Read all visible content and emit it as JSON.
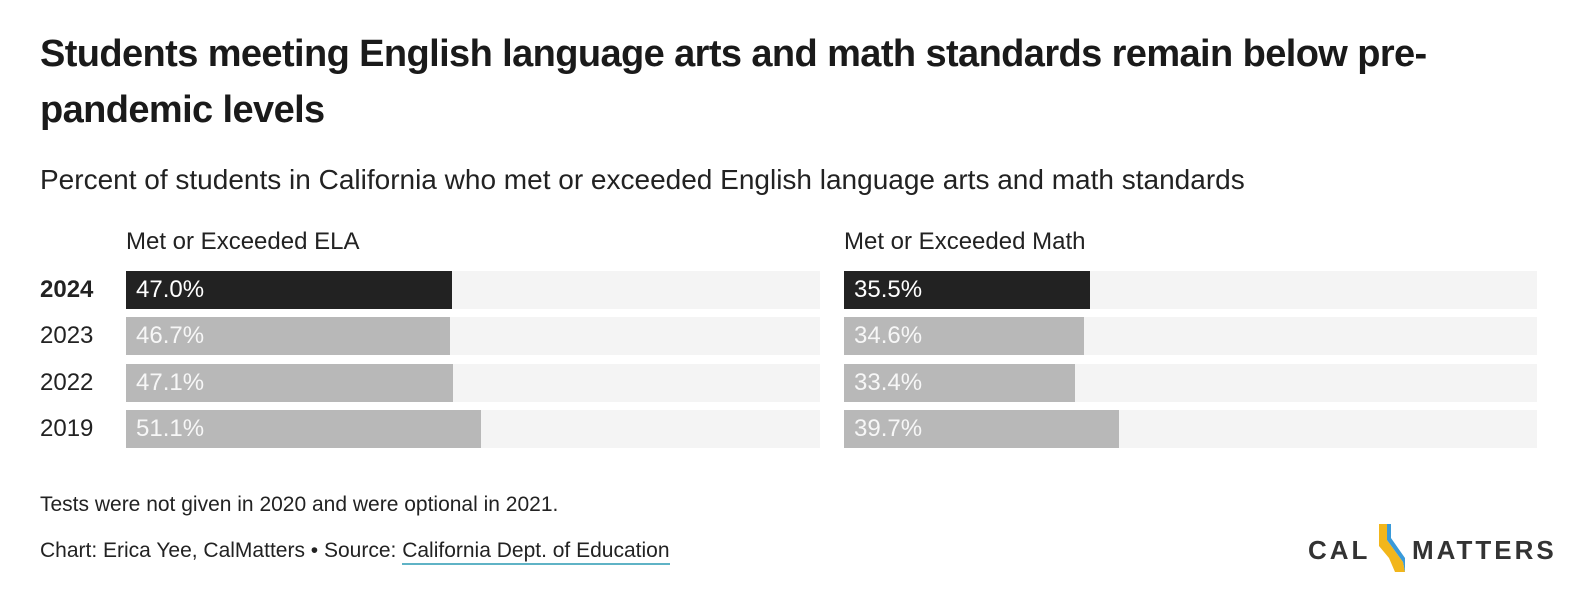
{
  "header": {
    "title": "Students meeting English language arts and math standards remain below pre-pandemic levels",
    "subtitle": "Percent of students in California who met or exceeded English language arts and math standards"
  },
  "chart_data": [
    {
      "type": "bar",
      "orientation": "horizontal",
      "title": "Met or Exceeded ELA",
      "categories": [
        "2024",
        "2023",
        "2022",
        "2019"
      ],
      "values": [
        47.0,
        46.7,
        47.1,
        51.1
      ],
      "value_labels": [
        "47.0%",
        "46.7%",
        "47.1%",
        "51.1%"
      ],
      "xlim": [
        0,
        100
      ],
      "highlight": "2024"
    },
    {
      "type": "bar",
      "orientation": "horizontal",
      "title": "Met or Exceeded Math",
      "categories": [
        "2024",
        "2023",
        "2022",
        "2019"
      ],
      "values": [
        35.5,
        34.6,
        33.4,
        39.7
      ],
      "value_labels": [
        "35.5%",
        "34.6%",
        "33.4%",
        "39.7%"
      ],
      "xlim": [
        0,
        100
      ],
      "highlight": "2024"
    }
  ],
  "colors": {
    "highlight_bar": "#222222",
    "other_bar": "#b8b8b8",
    "track": "#f4f4f4",
    "highlight_label": "#ffffff",
    "other_label": "#f7f7f7",
    "link_underline": "#5fb3c6",
    "logo_blue": "#3a9ad9",
    "logo_yellow": "#f2b61b"
  },
  "footer": {
    "note": "Tests were not given in 2020 and were optional in 2021.",
    "credit_prefix": "Chart: Erica Yee, CalMatters • Source: ",
    "source_link": "California Dept. of Education"
  },
  "logo": {
    "left_text": "CAL",
    "right_text": "MATTERS",
    "icon": "california-state-icon"
  }
}
